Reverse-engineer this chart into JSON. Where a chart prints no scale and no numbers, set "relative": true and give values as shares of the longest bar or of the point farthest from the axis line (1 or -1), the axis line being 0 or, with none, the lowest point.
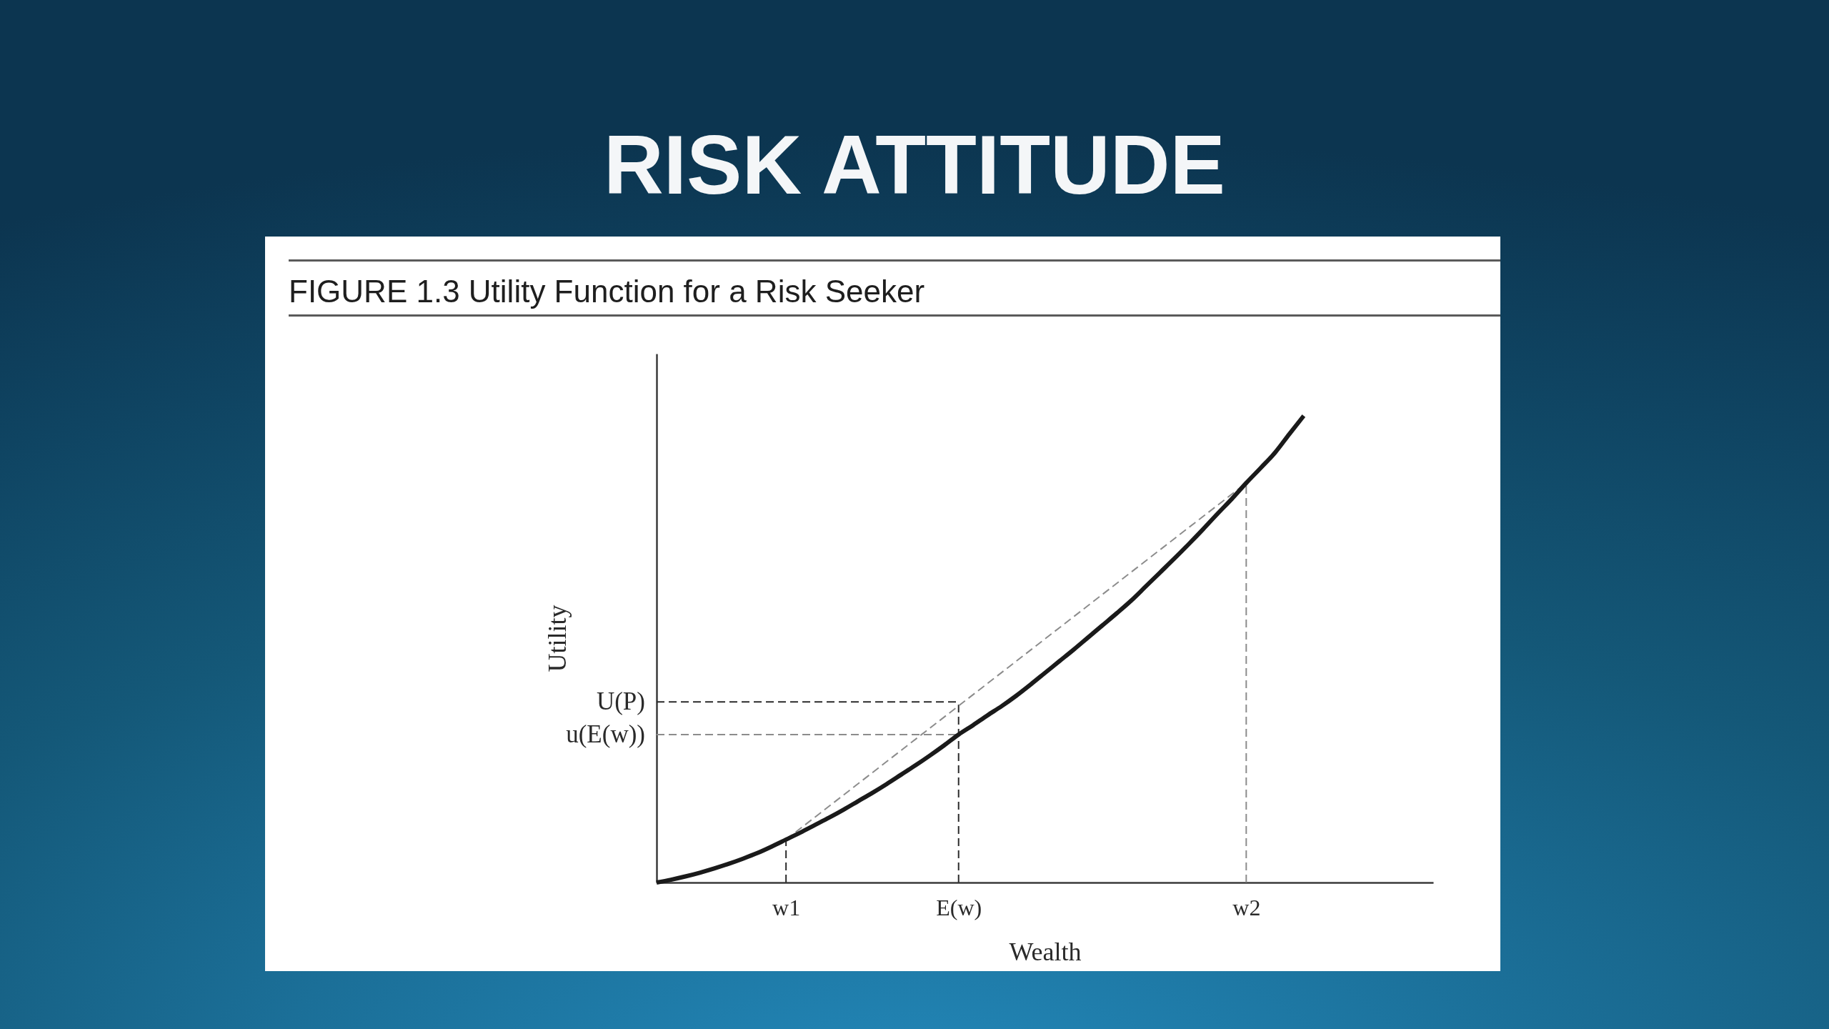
{
  "chart_data": {
    "type": "line",
    "title": "RISK ATTITUDE",
    "subtitle": "FIGURE 1.3 Utility Function for a Risk Seeker",
    "xlabel": "Wealth",
    "ylabel": "Utility",
    "relative": true,
    "categories": [
      null,
      null,
      null,
      null,
      null,
      null,
      null,
      null,
      null,
      "w1",
      null,
      null,
      null,
      null,
      null,
      null,
      null,
      null,
      null,
      null,
      null,
      "E(w)",
      null,
      null,
      null,
      null,
      null,
      null,
      null,
      null,
      null,
      null,
      null,
      null,
      null,
      null,
      null,
      null,
      null,
      null,
      null,
      "w2",
      null,
      null,
      null,
      null,
      null,
      null,
      null,
      null,
      null,
      null,
      null,
      null,
      null
    ],
    "series": [
      {
        "color": "#1a1a1a",
        "line_style": "solid",
        "values": [
          0,
          0.006,
          0.013,
          0.021,
          0.03,
          0.04,
          0.051,
          0.063,
          0.077,
          0.092,
          0.107,
          0.123,
          0.139,
          0.156,
          0.174,
          0.192,
          0.211,
          0.231,
          0.251,
          0.272,
          0.294,
          0.317,
          0.337,
          0.358,
          0.378,
          0.4,
          0.424,
          0.449,
          0.474,
          0.499,
          0.525,
          0.551,
          0.577,
          0.604,
          0.634,
          0.664,
          0.694,
          0.725,
          0.757,
          0.79,
          0.822,
          0.856,
          0.888,
          0.921,
          0.961,
          1,
          null,
          null,
          null,
          null,
          null,
          null,
          null,
          null,
          null
        ]
      },
      {
        "color": "#8c8c8c",
        "line_style": "dashed",
        "x": [
          "w1",
          "w2"
        ],
        "values": [
          0.092,
          0.856
        ]
      },
      {
        "name": "U(P)",
        "color": "#2b2b2b",
        "line_style": "dashed",
        "values": [
          0.387,
          0.387,
          0.387,
          0.387,
          0.387,
          0.387,
          0.387,
          0.387,
          0.387,
          0.387,
          0.387,
          0.387,
          0.387,
          0.387,
          0.387,
          0.387,
          0.387,
          0.387,
          0.387,
          0.387,
          0.387,
          0.387,
          null,
          null,
          null,
          null,
          null,
          null,
          null,
          null,
          null,
          null,
          null,
          null,
          null,
          null,
          null,
          null,
          null,
          null,
          null,
          null,
          null,
          null,
          null,
          null,
          null,
          null,
          null,
          null,
          null,
          null,
          null,
          null,
          null
        ]
      },
      {
        "name": "u(E(w))",
        "color": "#8c8c8c",
        "line_style": "dashed",
        "values": [
          0.317,
          0.317,
          0.317,
          0.317,
          0.317,
          0.317,
          0.317,
          0.317,
          0.317,
          0.317,
          0.317,
          0.317,
          0.317,
          0.317,
          0.317,
          0.317,
          0.317,
          0.317,
          0.317,
          0.317,
          0.317,
          0.317,
          null,
          null,
          null,
          null,
          null,
          null,
          null,
          null,
          null,
          null,
          null,
          null,
          null,
          null,
          null,
          null,
          null,
          null,
          null,
          null,
          null,
          null,
          null,
          null,
          null,
          null,
          null,
          null,
          null,
          null,
          null,
          null,
          null
        ]
      },
      {
        "color": "#2b2b2b",
        "line_style": "dashed",
        "x": [
          "w1",
          "w1"
        ],
        "values": [
          0,
          0.092
        ]
      },
      {
        "color": "#2b2b2b",
        "line_style": "dashed",
        "x": [
          "E(w)",
          "E(w)"
        ],
        "values": [
          0,
          0.387
        ]
      },
      {
        "color": "#8c8c8c",
        "line_style": "dashed",
        "x": [
          "w2",
          "w2"
        ],
        "values": [
          0,
          0.856
        ]
      }
    ]
  }
}
